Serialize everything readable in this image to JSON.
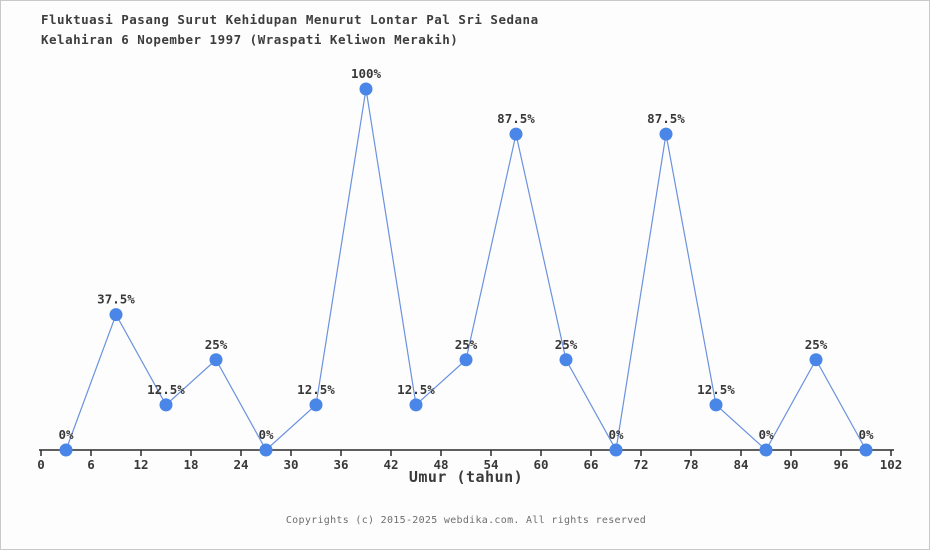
{
  "page": {
    "title_line1": "Fluktuasi Pasang Surut Kehidupan Menurut Lontar Pal Sri Sedana",
    "title_line2": "Kelahiran 6 Nopember 1997 (Wraspati Keliwon Merakih)",
    "footer": "Copyrights (c) 2015-2025 webdika.com. All rights reserved"
  },
  "chart_data": {
    "type": "line",
    "title": "Fluktuasi Pasang Surut Kehidupan Menurut Lontar Pal Sri Sedana Kelahiran 6 Nopember 1997 (Wraspati Keliwon Merakih)",
    "xlabel": "Umur (tahun)",
    "ylabel": "",
    "x": [
      3,
      9,
      15,
      21,
      27,
      33,
      39,
      45,
      51,
      57,
      63,
      69,
      75,
      81,
      87,
      93,
      99
    ],
    "values": [
      0,
      37.5,
      12.5,
      25,
      0,
      12.5,
      100,
      12.5,
      25,
      87.5,
      25,
      0,
      87.5,
      12.5,
      0,
      25,
      0
    ],
    "point_labels": [
      "0%",
      "37.5%",
      "12.5%",
      "25%",
      "0%",
      "12.5%",
      "100%",
      "12.5%",
      "25%",
      "87.5%",
      "25%",
      "0%",
      "87.5%",
      "12.5%",
      "0%",
      "25%",
      "0%"
    ],
    "x_ticks": [
      0,
      6,
      12,
      18,
      24,
      30,
      36,
      42,
      48,
      54,
      60,
      66,
      72,
      78,
      84,
      90,
      96,
      102
    ],
    "xlim": [
      0,
      102
    ],
    "ylim": [
      0,
      100
    ],
    "grid": false,
    "legend": "none",
    "line_color": "#6b92de",
    "marker_color": "#4a86e8",
    "axis_color": "#2b2b2b"
  }
}
